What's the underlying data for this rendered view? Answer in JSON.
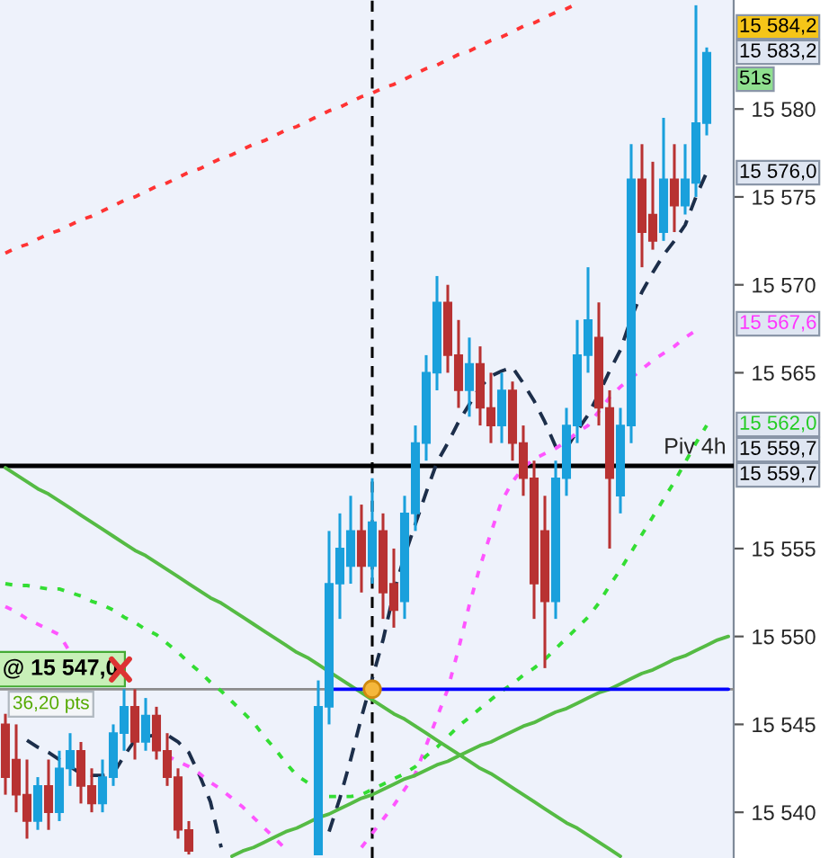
{
  "chart_data": {
    "type": "candlestick",
    "categories": [
      null,
      null,
      null,
      null,
      null,
      null,
      null,
      null,
      null,
      null,
      null,
      null,
      null,
      null,
      null,
      null,
      null,
      null,
      null,
      null,
      null,
      null,
      null,
      null,
      null,
      null,
      null,
      null,
      null,
      null,
      null,
      null,
      null,
      null,
      null,
      null,
      null,
      null,
      null,
      null,
      null,
      null,
      null,
      null,
      null,
      null,
      null,
      null,
      null,
      null,
      null,
      null,
      null,
      null,
      null,
      null,
      null,
      null,
      null,
      null,
      null,
      null,
      null,
      null,
      null,
      null,
      null,
      null
    ],
    "ohlc": [
      [
        15545,
        15545.6,
        15541,
        15542
      ],
      [
        15543,
        15545,
        15540,
        15541
      ],
      [
        15541,
        15543,
        15538.5,
        15539.5
      ],
      [
        15539.5,
        15542,
        15539,
        15541.5
      ],
      [
        15541.5,
        15543,
        15539,
        15540
      ],
      [
        15540,
        15543.5,
        15539.5,
        15542.5
      ],
      [
        15542.5,
        15544.5,
        15541.5,
        15543.5
      ],
      [
        15543.5,
        15544,
        15540.5,
        15541.5
      ],
      [
        15541.5,
        15542.5,
        15540,
        15540.5
      ],
      [
        15540.5,
        15543,
        15540,
        15542
      ],
      [
        15542,
        15545,
        15541.5,
        15544.5
      ],
      [
        15544.5,
        15547,
        15543.5,
        15546
      ],
      [
        15546,
        15547,
        15543,
        15544
      ],
      [
        15544,
        15546.5,
        15543.5,
        15545.5
      ],
      [
        15545.5,
        15546,
        15543,
        15543.5
      ],
      [
        15543.5,
        15544.5,
        15541.5,
        15542
      ],
      [
        15542,
        15542.5,
        15538.5,
        15539
      ],
      [
        15539,
        15539.5,
        15537.6,
        15537.8
      ],
      null,
      null,
      null,
      null,
      null,
      null,
      null,
      null,
      null,
      null,
      null,
      [
        15537.6,
        15547.5,
        15537.6,
        15546
      ],
      [
        15546,
        15556,
        15545,
        15553
      ],
      [
        15553,
        15557,
        15551,
        15555
      ],
      [
        15554,
        15558,
        15553,
        15556
      ],
      [
        15556,
        15557.5,
        15552.5,
        15554
      ],
      [
        15554,
        15559,
        15553,
        15556.5
      ],
      [
        15556,
        15557,
        15551,
        15552.5
      ],
      [
        15553,
        15555,
        15550.5,
        15551.5
      ],
      [
        15552,
        15558,
        15551,
        15557
      ],
      [
        15557,
        15562,
        15556,
        15561
      ],
      [
        15561,
        15566,
        15560,
        15565
      ],
      [
        15565,
        15570.5,
        15564,
        15569
      ],
      [
        15569,
        15570,
        15565,
        15566
      ],
      [
        15566,
        15568,
        15563,
        15564
      ],
      [
        15564,
        15567,
        15562.5,
        15565.5
      ],
      [
        15565.5,
        15566.5,
        15562,
        15563
      ],
      [
        15563,
        15565,
        15561,
        15562
      ],
      [
        15562,
        15565,
        15561,
        15564
      ],
      [
        15564,
        15564.5,
        15560,
        15561
      ],
      [
        15561,
        15562,
        15558,
        15559
      ],
      [
        15559,
        15560,
        15551,
        15553
      ],
      [
        15556,
        15558,
        15548.2,
        15552
      ],
      [
        15552,
        15560,
        15551,
        15559
      ],
      [
        15559,
        15563,
        15558,
        15562
      ],
      [
        15562,
        15568,
        15561,
        15566
      ],
      [
        15566,
        15571,
        15565,
        15568
      ],
      [
        15567,
        15569,
        15562,
        15563
      ],
      [
        15563,
        15564,
        15555,
        15559
      ],
      [
        15558,
        15563,
        15557,
        15562
      ],
      [
        15562,
        15578,
        15561,
        15576
      ],
      [
        15576,
        15578,
        15571,
        15573
      ],
      [
        15574,
        15577,
        15572,
        15572.5
      ],
      [
        15573,
        15579.5,
        15572.5,
        15576
      ],
      [
        15576,
        15578,
        15573,
        15574.5
      ],
      [
        15574.5,
        15578,
        15574,
        15576
      ],
      [
        15575.8,
        15585.9,
        15575,
        15579.2
      ],
      [
        15579.2,
        15583.5,
        15578.5,
        15583.2
      ],
      null,
      null
    ],
    "colors": [
      "#b83232",
      "#b83232",
      "#b83232",
      "#1aa0dc",
      "#b83232",
      "#1aa0dc",
      "#1aa0dc",
      "#b83232",
      "#b83232",
      "#1aa0dc",
      "#1aa0dc",
      "#1aa0dc",
      "#b83232",
      "#1aa0dc",
      "#b83232",
      "#b83232",
      "#b83232",
      "#b83232",
      null,
      null,
      null,
      null,
      null,
      null,
      null,
      null,
      null,
      null,
      null,
      "#1aa0dc",
      "#1aa0dc",
      "#1aa0dc",
      "#1aa0dc",
      "#b83232",
      "#1aa0dc",
      "#b83232",
      "#b83232",
      "#1aa0dc",
      "#1aa0dc",
      "#1aa0dc",
      "#1aa0dc",
      "#b83232",
      "#b83232",
      "#1aa0dc",
      "#b83232",
      "#b83232",
      "#1aa0dc",
      "#b83232",
      "#b83232",
      "#b83232",
      "#b83232",
      "#1aa0dc",
      "#1aa0dc",
      "#1aa0dc",
      "#1aa0dc",
      "#b83232",
      "#b83232",
      "#1aa0dc",
      "#1aa0dc",
      "#b83232",
      "#b83232",
      "#1aa0dc",
      "#b83232",
      "#1aa0dc",
      "#1aa0dc",
      "#1aa0dc",
      null,
      null
    ],
    "series": [
      {
        "type": "line",
        "color": "#1c2e4a",
        "line_style": "dashed",
        "values": [
          null,
          null,
          15544.1,
          15543.7,
          15543.4,
          15543.0,
          15542.6,
          15542.2,
          15542.1,
          15542.1,
          15542.2,
          15543.2,
          15544.1,
          15544.3,
          15544.4,
          15544.4,
          15544.0,
          15543.4,
          15542.1,
          15540.6,
          15538.0,
          null,
          null,
          null,
          null,
          null,
          null,
          null,
          null,
          null,
          15538.9,
          15540.8,
          15543.0,
          15545.4,
          15547.6,
          15549.8,
          15552.5,
          15554.6,
          15556.4,
          15558.2,
          15559.9,
          15561.0,
          15562.2,
          15563.2,
          15564.2,
          15564.8,
          15565.1,
          15565.3,
          15564.4,
          15563.4,
          15562.2,
          15560.8,
          15560.7,
          15561.7,
          15562.6,
          15563.8,
          15565.1,
          15566.3,
          15568.1,
          15569.6,
          15570.7,
          15571.7,
          15572.5,
          15573.4,
          15575.0,
          15576.4,
          null,
          null
        ]
      },
      {
        "type": "line",
        "color": "#ff55ff",
        "line_style": "dotted",
        "values": [
          15551.7,
          15551.4,
          15551.0,
          15550.7,
          15550.4,
          15550.1,
          15549.1,
          null,
          null,
          null,
          null,
          null,
          null,
          null,
          null,
          15543.2,
          15542.9,
          15542.6,
          15542.2,
          15541.7,
          15541.3,
          15540.8,
          15540.3,
          15539.7,
          15539.1,
          15538.5,
          15537.9,
          null,
          null,
          null,
          null,
          null,
          null,
          15538.0,
          15538.8,
          15539.6,
          15540.4,
          15541.3,
          15542.2,
          15543.8,
          15545.4,
          15547.0,
          15549.3,
          15551.8,
          15554.0,
          15555.9,
          15557.7,
          15558.8,
          15559.6,
          15560.1,
          15560.4,
          15560.7,
          15561.1,
          15561.6,
          15562.0,
          15562.8,
          15563.6,
          15564.2,
          15564.7,
          15565.2,
          15565.7,
          15566.1,
          15566.5,
          15567.0,
          15567.4,
          null,
          null,
          null
        ]
      },
      {
        "type": "line",
        "color": "#33dd33",
        "line_style": "dotted",
        "values": [
          15553.0,
          15552.9,
          15552.9,
          15552.8,
          15552.7,
          15552.7,
          15552.5,
          15552.3,
          15552.0,
          15551.8,
          15551.5,
          15551.1,
          15550.8,
          15550.4,
          15550.1,
          15549.6,
          15549.1,
          15548.5,
          15548.0,
          15547.4,
          15546.9,
          15546.3,
          15545.7,
          15545.1,
          15544.3,
          15543.6,
          15542.8,
          15542.1,
          15541.7,
          null,
          15540.9,
          15540.9,
          15540.9,
          15541.0,
          15541.3,
          15541.6,
          15541.9,
          15542.2,
          15542.6,
          15543.2,
          15543.7,
          15544.3,
          15544.9,
          15545.4,
          15545.9,
          15546.4,
          15546.9,
          15547.3,
          15547.8,
          15548.2,
          15548.7,
          15549.3,
          15549.9,
          15550.5,
          15551.1,
          15551.9,
          15552.9,
          15553.8,
          15554.8,
          15555.8,
          15556.8,
          15557.8,
          15558.8,
          15559.9,
          15561.0,
          15562.0,
          null,
          null
        ]
      },
      {
        "type": "line",
        "color": "#55bb44",
        "line_style": "solid",
        "values": [
          15559.6,
          15559.2,
          15558.8,
          15558.4,
          15558.1,
          15557.7,
          15557.3,
          15556.9,
          15556.5,
          15556.1,
          15555.7,
          15555.3,
          15554.9,
          15554.6,
          15554.2,
          15553.8,
          15553.4,
          15553.0,
          15552.6,
          15552.2,
          15551.9,
          15551.5,
          15551.1,
          15550.7,
          15550.3,
          15549.9,
          15549.5,
          15549.1,
          15548.8,
          15548.4,
          15548.0,
          15547.6,
          15547.2,
          15546.8,
          15546.4,
          15546.0,
          15545.6,
          15545.3,
          15544.9,
          15544.5,
          15544.1,
          15543.7,
          15543.3,
          15542.9,
          15542.5,
          15542.2,
          15541.8,
          15541.4,
          15541.0,
          15540.6,
          15540.2,
          15539.8,
          15539.4,
          15539.1,
          15538.7,
          15538.3,
          15537.9,
          15537.5,
          null,
          null,
          null,
          null,
          null,
          null,
          null,
          null,
          null,
          null
        ]
      },
      {
        "type": "line",
        "color": "#55bb44",
        "line_style": "solid",
        "values": [
          null,
          null,
          null,
          null,
          null,
          null,
          null,
          null,
          null,
          null,
          null,
          null,
          null,
          null,
          null,
          null,
          null,
          null,
          null,
          null,
          null,
          15537.5,
          15537.8,
          15538.0,
          15538.3,
          15538.6,
          15538.9,
          15539.1,
          15539.4,
          15539.7,
          15539.9,
          15540.2,
          15540.5,
          15540.8,
          15541.0,
          15541.3,
          15541.6,
          15541.9,
          15542.1,
          15542.4,
          15542.7,
          15542.9,
          15543.2,
          15543.5,
          15543.8,
          15544.0,
          15544.3,
          15544.6,
          15544.9,
          15545.1,
          15545.4,
          15545.7,
          15545.9,
          15546.2,
          15546.5,
          15546.8,
          15547.0,
          15547.3,
          15547.6,
          15547.9,
          15548.1,
          15548.4,
          15548.7,
          15548.9,
          15549.2,
          15549.5,
          15549.8,
          15550.0
        ]
      },
      {
        "type": "line",
        "color": "#ff3333",
        "line_style": "dotted",
        "values": [
          15571.8,
          15572.1,
          15572.3,
          15572.6,
          15572.9,
          15573.1,
          15573.4,
          15573.7,
          15573.9,
          15574.2,
          15574.5,
          15574.8,
          15575.0,
          15575.3,
          15575.6,
          15575.8,
          15576.1,
          15576.4,
          15576.6,
          15576.9,
          15577.2,
          15577.4,
          15577.7,
          15578.0,
          15578.2,
          15578.5,
          15578.8,
          15579.0,
          15579.3,
          15579.6,
          15579.9,
          15580.1,
          15580.4,
          15580.7,
          15580.9,
          15581.2,
          15581.4,
          15581.7,
          15582.0,
          15582.3,
          15582.5,
          15582.8,
          15583.1,
          15583.3,
          15583.6,
          15583.9,
          15584.1,
          15584.4,
          15584.7,
          15584.9,
          15585.2,
          15585.5,
          15585.7,
          15586.0,
          null,
          null,
          null,
          null,
          null,
          null,
          null,
          null,
          null,
          null,
          null,
          null,
          null,
          null
        ]
      },
      {
        "type": "line",
        "color": "#0000ff",
        "line_style": "solid",
        "values": [
          null,
          null,
          null,
          null,
          null,
          null,
          null,
          null,
          null,
          null,
          null,
          null,
          null,
          null,
          null,
          null,
          null,
          null,
          null,
          null,
          null,
          null,
          null,
          null,
          null,
          null,
          null,
          null,
          null,
          null,
          15547.0,
          15547.0,
          15547.0,
          15547.0,
          15547.0,
          15547.0,
          15547.0,
          15547.0,
          15547.0,
          15547.0,
          15547.0,
          15547.0,
          15547.0,
          15547.0,
          15547.0,
          15547.0,
          15547.0,
          15547.0,
          15547.0,
          15547.0,
          15547.0,
          15547.0,
          15547.0,
          15547.0,
          15547.0,
          15547.0,
          15547.0,
          15547.0,
          15547.0,
          15547.0,
          15547.0,
          15547.0,
          15547.0,
          15547.0,
          15547.0,
          15547.0,
          15547.0,
          15547.0
        ]
      },
      {
        "type": "scatter",
        "color": "#f5b73b",
        "marker": "circle",
        "values": [
          null,
          null,
          null,
          null,
          null,
          null,
          null,
          null,
          null,
          null,
          null,
          null,
          null,
          null,
          null,
          null,
          null,
          null,
          null,
          null,
          null,
          null,
          null,
          null,
          null,
          null,
          null,
          null,
          null,
          null,
          null,
          null,
          null,
          null,
          15547.0,
          null,
          null,
          null,
          null,
          null,
          null,
          null,
          null,
          null,
          null,
          null,
          null,
          null,
          null,
          null,
          null,
          null,
          null,
          null,
          null,
          null,
          null,
          null,
          null,
          null,
          null,
          null,
          null,
          null,
          null,
          null,
          null,
          null
        ]
      }
    ],
    "ref_lines": [
      {
        "axis": "y",
        "value": 15559.7,
        "label": "Piv 4h",
        "color": "#000000",
        "line_style": "solid"
      },
      {
        "axis": "y",
        "value": 15547.0,
        "color": "#8c8c8c",
        "line_style": "solid"
      }
    ],
    "annotations": [
      "15 584,2",
      "15 583,2",
      "51s",
      "15 576,0",
      "15 567,6",
      "15 562,0",
      "15 559,7",
      "15 559,7",
      {
        "text": "@ 15 547,0",
        "y": 15547.0
      },
      {
        "text": "36,20 pts",
        "y": 15547.0
      }
    ],
    "ylim": [
      15537.4,
      15586.2
    ],
    "yticks": [
      {
        "value": 15540,
        "label": "15 540"
      },
      {
        "value": 15545,
        "label": "15 545"
      },
      {
        "value": 15550,
        "label": "15 550"
      },
      {
        "value": 15555,
        "label": "15 555"
      },
      {
        "value": 15565,
        "label": "15 565"
      },
      {
        "value": 15570,
        "label": "15 570"
      },
      {
        "value": 15575,
        "label": "15 575"
      },
      {
        "value": 15580,
        "label": "15 580"
      }
    ],
    "tick_labels": "y",
    "grid": false,
    "legend": false
  }
}
